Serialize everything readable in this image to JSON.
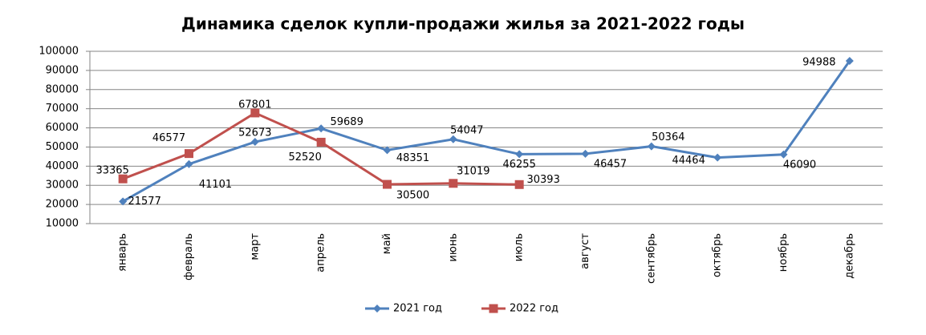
{
  "chart_data": {
    "type": "line",
    "title": "Динамика сделок купли-продажи жилья за 2021-2022 годы",
    "categories": [
      "январь",
      "февраль",
      "март",
      "апрель",
      "май",
      "июнь",
      "июль",
      "август",
      "сентябрь",
      "октябрь",
      "ноябрь",
      "декабрь"
    ],
    "series": [
      {
        "name": "2021 год",
        "color": "#4f81bd",
        "marker": "diamond",
        "values": [
          21577,
          41101,
          52673,
          59689,
          48351,
          54047,
          46255,
          46457,
          50364,
          44464,
          46090,
          94988
        ]
      },
      {
        "name": "2022 год",
        "color": "#c0504d",
        "marker": "square",
        "values": [
          33365,
          46577,
          67801,
          52520,
          30500,
          31019,
          30393,
          null,
          null,
          null,
          null,
          null
        ]
      }
    ],
    "ylim": [
      10000,
      100000
    ],
    "yticks": [
      10000,
      20000,
      30000,
      40000,
      50000,
      60000,
      70000,
      80000,
      90000,
      100000
    ],
    "grid": true,
    "legend": "bottom"
  }
}
